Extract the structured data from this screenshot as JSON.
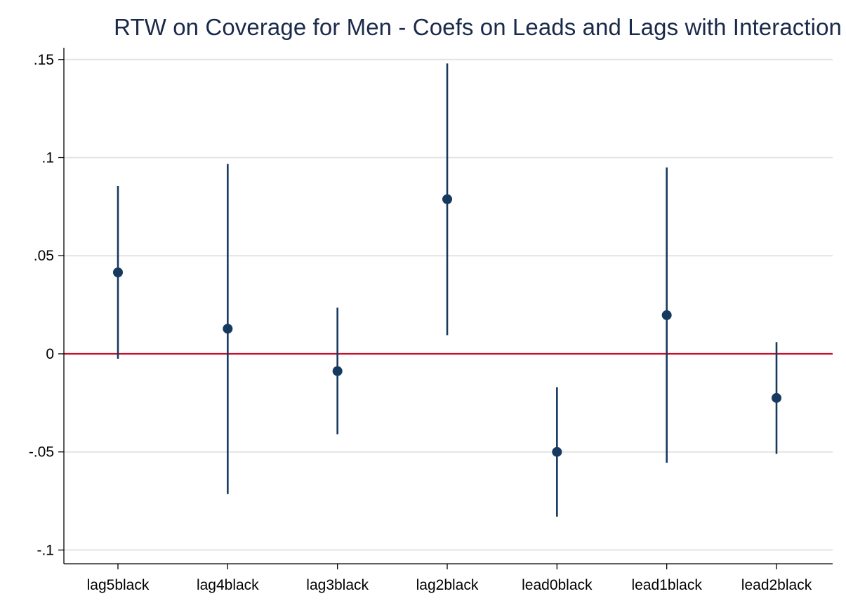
{
  "chart_data": {
    "type": "scatter",
    "subtype": "coefficient-plot-with-confidence-intervals",
    "title": "RTW on Coverage for Men - Coefs on Leads and Lags with Interaction",
    "xlabel": "",
    "ylabel": "",
    "categories": [
      "lag5black",
      "lag4black",
      "lag3black",
      "lag2black",
      "lead0black",
      "lead1black",
      "lead2black"
    ],
    "series": [
      {
        "estimates": [
          0.0415,
          0.0128,
          -0.0088,
          0.0788,
          -0.05,
          0.0197,
          -0.0225
        ],
        "ci_lower": [
          -0.0025,
          -0.0715,
          -0.041,
          0.0095,
          -0.083,
          -0.0555,
          -0.051
        ],
        "ci_upper": [
          0.0855,
          0.0968,
          0.0235,
          0.148,
          -0.017,
          0.095,
          0.006
        ]
      }
    ],
    "ylim": [
      -0.107,
      0.156
    ],
    "yticks": [
      0.15,
      0.1,
      0.05,
      0,
      -0.05,
      -0.1
    ],
    "ytick_labels": [
      ".15",
      ".1",
      ".05",
      "0",
      "-.05",
      "-.1"
    ],
    "reference_line": 0,
    "grid": true,
    "legend": "none",
    "colors": {
      "marker": "#163a5f",
      "reference_line": "#c8102e",
      "grid": "#e3e3e3",
      "axis": "#000000",
      "title": "#1a2a4a"
    }
  }
}
